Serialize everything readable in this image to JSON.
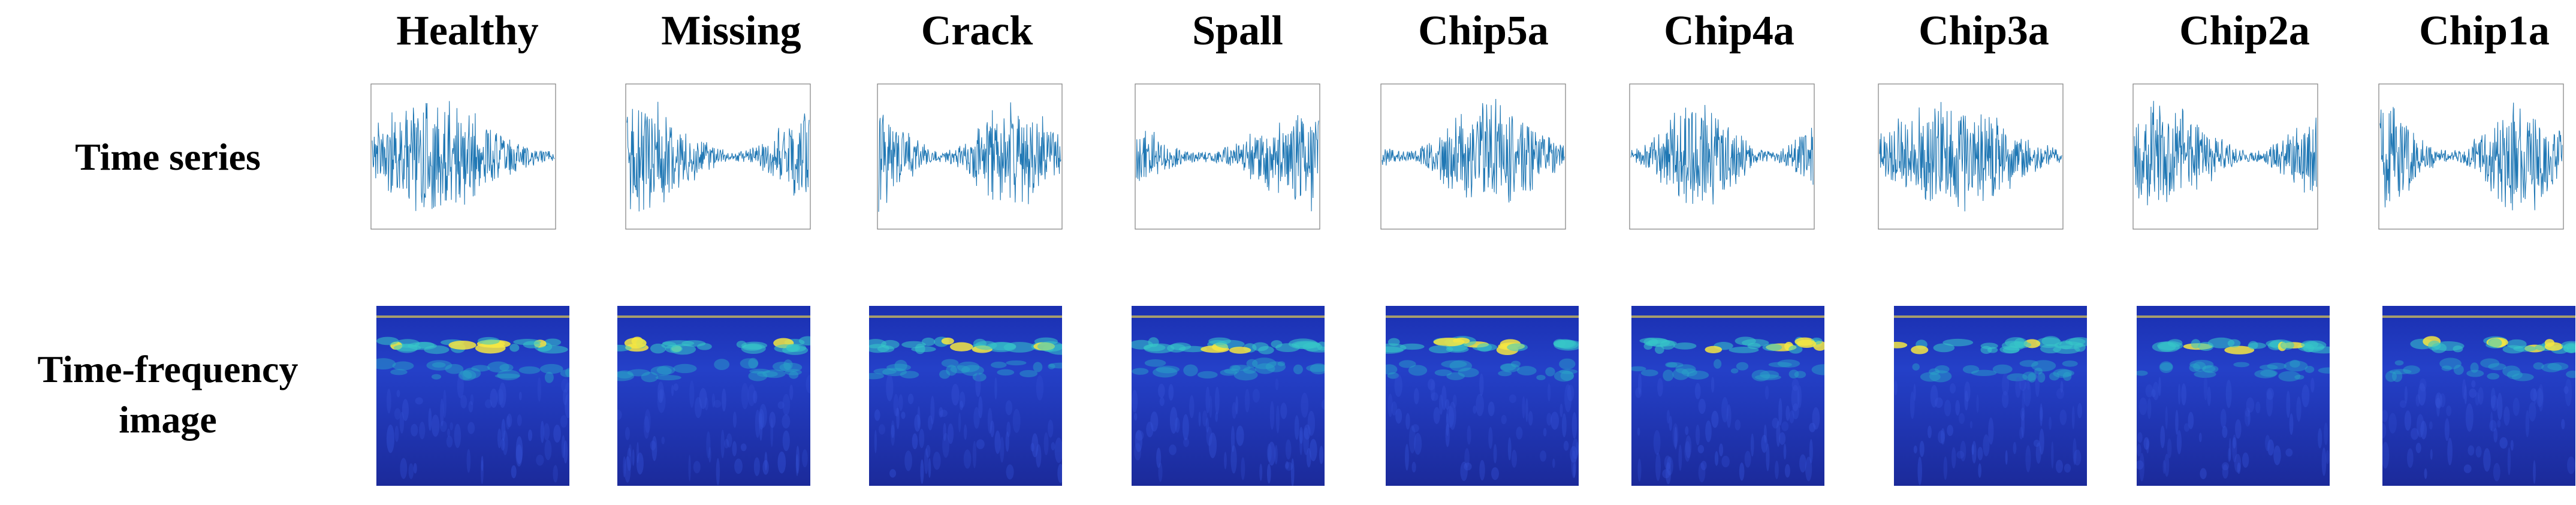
{
  "columns": [
    {
      "label": "Healthy"
    },
    {
      "label": "Missing"
    },
    {
      "label": "Crack"
    },
    {
      "label": "Spall"
    },
    {
      "label": "Chip5a"
    },
    {
      "label": "Chip4a"
    },
    {
      "label": "Chip3a"
    },
    {
      "label": "Chip2a"
    },
    {
      "label": "Chip1a"
    }
  ],
  "rows": {
    "time_series": "Time series",
    "time_frequency_line1": "Time-frequency",
    "time_frequency_line2": "image"
  },
  "colors": {
    "signal": "#1f77b4",
    "axis": "#7f7f7f",
    "spectrogram_base": "#1f2a9c",
    "spectrogram_high": "#f5e642"
  }
}
